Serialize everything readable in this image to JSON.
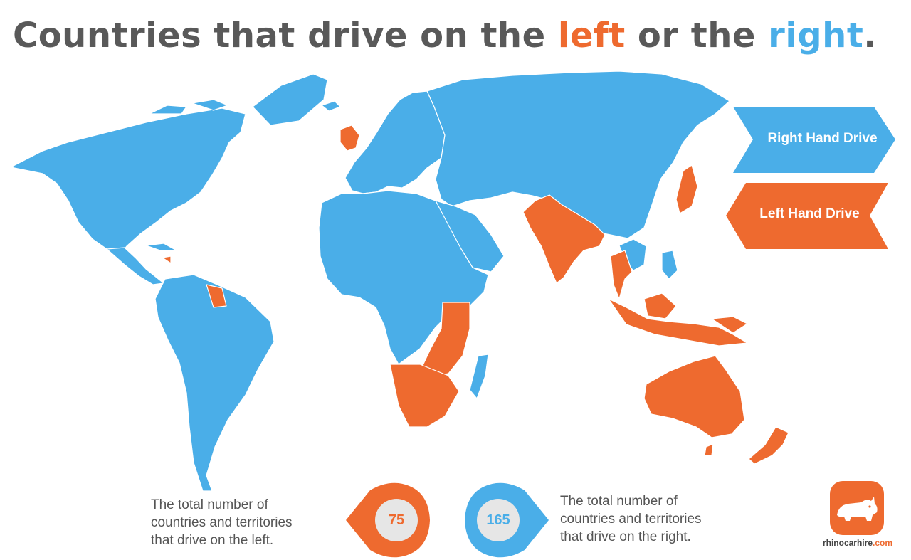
{
  "title": {
    "prefix": "Countries that drive on the ",
    "left_word": "left",
    "middle": " or the ",
    "right_word": "right",
    "suffix": "."
  },
  "colors": {
    "right_hand_drive": "#4aaee8",
    "left_hand_drive": "#ee6a2f",
    "title_gray": "#595959",
    "text_gray": "#555555",
    "pin_center": "#e6e6e6"
  },
  "legend": {
    "right_label": "Right Hand Drive",
    "left_label": "Left Hand Drive"
  },
  "stats": {
    "left": {
      "count": "75",
      "lines": [
        "The total number of",
        "countries and territories",
        "that drive on the left."
      ]
    },
    "right": {
      "count": "165",
      "lines": [
        "The total number of",
        "countries and territories",
        "that drive on the right."
      ]
    }
  },
  "brand": {
    "name": "rhinocarhire",
    "tld": ".com",
    "icon": "rhino-icon"
  }
}
